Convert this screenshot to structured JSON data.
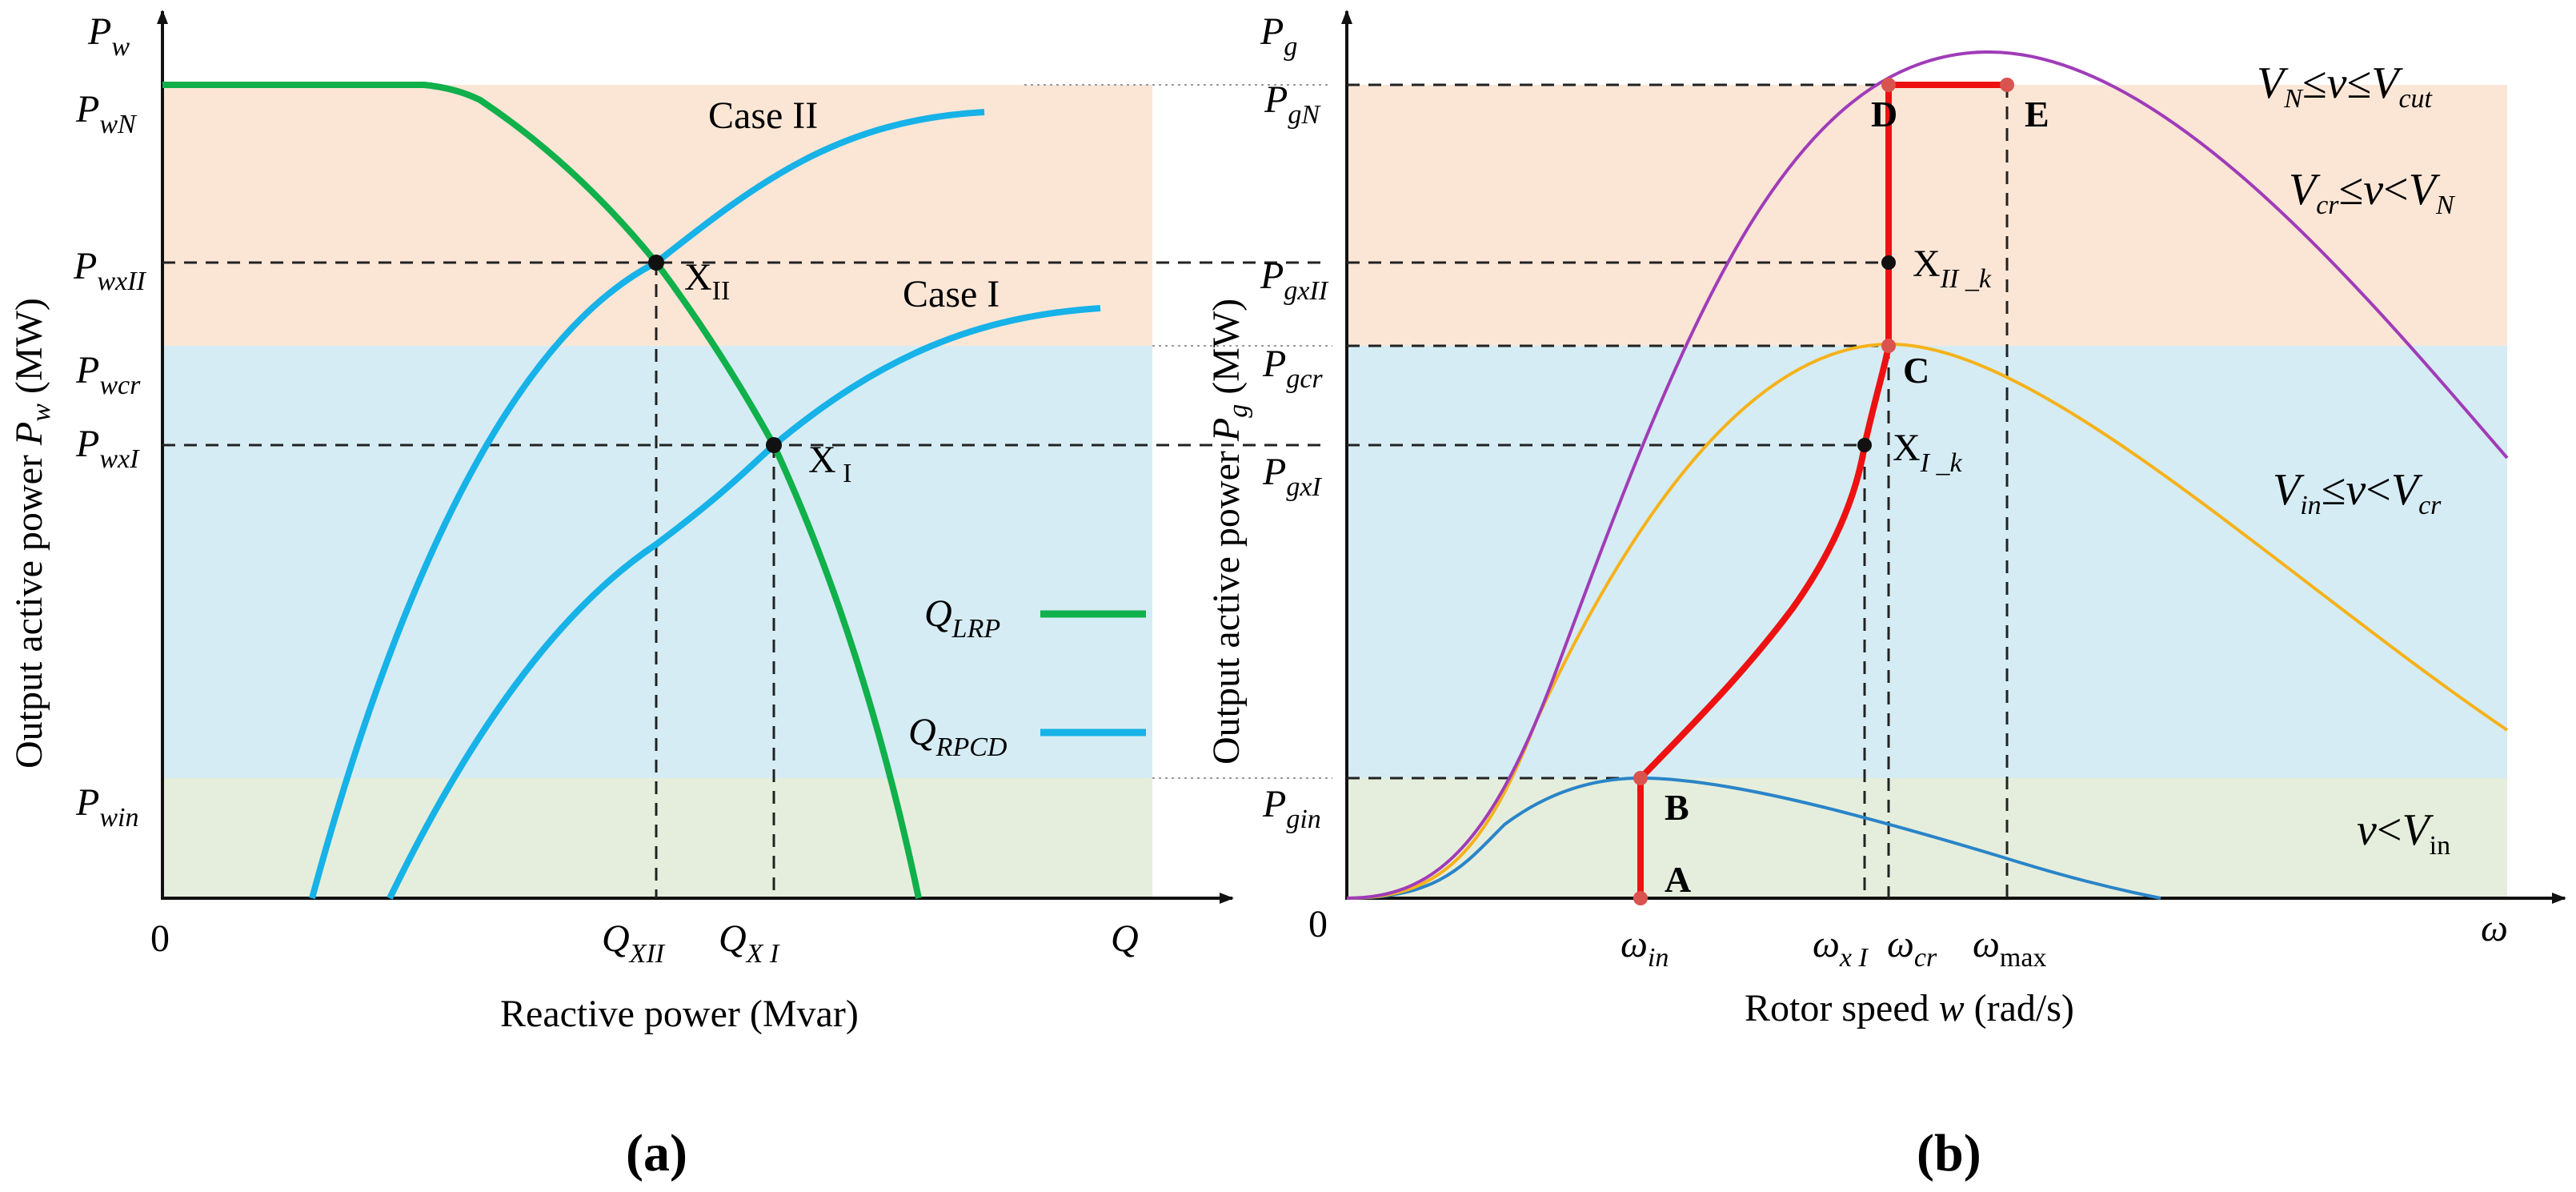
{
  "colors": {
    "band_top": "#fbe6d6",
    "band_mid": "#d5ecf4",
    "band_bot": "#e5eedc",
    "green": "#10b04a",
    "cyan": "#16b2e8",
    "red": "#ee1111",
    "purple": "#a03cb8",
    "orange": "#f5b21b",
    "blue": "#2a84c8",
    "axis": "#111111",
    "dash": "#222222"
  },
  "panel_a": {
    "tag_open": "(",
    "tag_letter": "a",
    "tag_close": ")",
    "x_axis_label": "Reactive power (Mvar)",
    "y_axis_label_main": "Output active power ",
    "y_axis_label_var": "P",
    "y_axis_label_sub": "w",
    "y_axis_label_unit": " (MW)",
    "y_top": {
      "base": "P",
      "sub": "w"
    },
    "y_ticks": [
      {
        "base": "P",
        "sub": "wN"
      },
      {
        "base": "P",
        "sub": "wxII"
      },
      {
        "base": "P",
        "sub": "wcr"
      },
      {
        "base": "P",
        "sub": "wxI"
      },
      {
        "base": "P",
        "sub": "win"
      }
    ],
    "x_ticks": [
      {
        "base": "Q",
        "sub": "XII"
      },
      {
        "base": "Q",
        "sub": "X I"
      }
    ],
    "origin": "0",
    "x_end": "Q",
    "case_labels": [
      "Case  II",
      "Case  I"
    ],
    "points": [
      {
        "base": "X",
        "sub": "II"
      },
      {
        "base": "X",
        "sub": " I"
      }
    ],
    "legend": [
      {
        "base": "Q",
        "sub": "LRP"
      },
      {
        "base": "Q",
        "sub": "RPCD"
      }
    ]
  },
  "panel_b": {
    "tag_open": "(",
    "tag_letter": "b",
    "tag_close": ")",
    "x_axis_label_main": "Rotor speed ",
    "x_axis_label_var": "w",
    "x_axis_label_unit": " (rad/s)",
    "y_axis_label_main": "Output active power ",
    "y_axis_label_var": "P",
    "y_axis_label_sub": "g",
    "y_axis_label_unit": " (MW)",
    "y_top": {
      "base": "P",
      "sub": "g"
    },
    "y_ticks": [
      {
        "base": "P",
        "sub": "gN"
      },
      {
        "base": "P",
        "sub": "gxII"
      },
      {
        "base": "P",
        "sub": "gcr"
      },
      {
        "base": "P",
        "sub": "gxI"
      },
      {
        "base": "P",
        "sub": "gin"
      }
    ],
    "x_ticks": [
      {
        "base": "ω",
        "sub": "in"
      },
      {
        "base": "ω",
        "sub": "x I"
      },
      {
        "base": "ω",
        "sub": "cr"
      },
      {
        "base": "ω",
        "sub": "max"
      }
    ],
    "origin": "0",
    "x_end": "ω",
    "point_letters": [
      "A",
      "B",
      "C",
      "D",
      "E"
    ],
    "points": [
      {
        "base": "X",
        "sub": "II _k"
      },
      {
        "base": "X",
        "sub": "I _k"
      }
    ],
    "regions": [
      {
        "a": "V",
        "as": "N",
        "op1": "≤",
        "v": "v",
        "op2": "≤",
        "b": "V",
        "bs": "cut"
      },
      {
        "a": "V",
        "as": "cr",
        "op1": "≤",
        "v": "v",
        "op2": "<",
        "b": "V",
        "bs": "N"
      },
      {
        "a": "V",
        "as": "in",
        "op1": "≤",
        "v": "v",
        "op2": "<",
        "b": "V",
        "bs": "cr"
      },
      {
        "a": "",
        "as": "",
        "op1": "",
        "v": "v",
        "op2": "<",
        "b": "V",
        "bs": "in"
      }
    ]
  }
}
